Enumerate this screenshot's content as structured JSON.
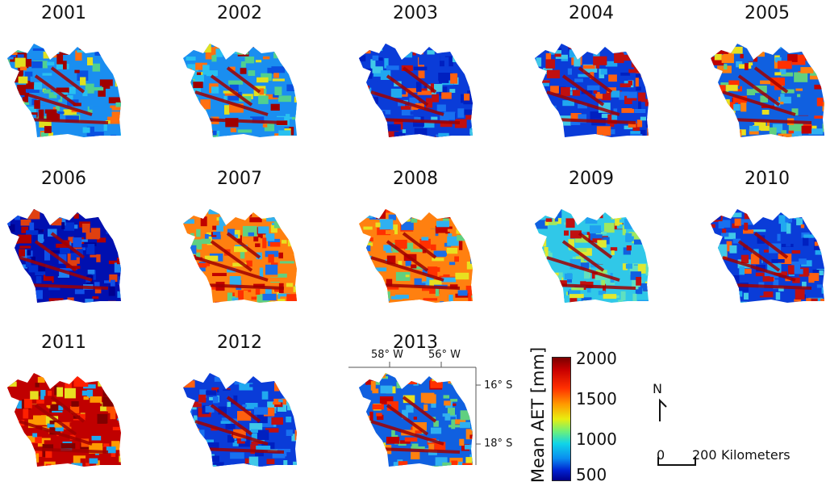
{
  "panels": [
    {
      "year": "2001",
      "palette": "mixed-blue"
    },
    {
      "year": "2002",
      "palette": "mixed-blue"
    },
    {
      "year": "2003",
      "palette": "blue"
    },
    {
      "year": "2004",
      "palette": "blue"
    },
    {
      "year": "2005",
      "palette": "mixed-warm"
    },
    {
      "year": "2006",
      "palette": "dark-blue"
    },
    {
      "year": "2007",
      "palette": "warm"
    },
    {
      "year": "2008",
      "palette": "warm"
    },
    {
      "year": "2009",
      "palette": "cyan"
    },
    {
      "year": "2010",
      "palette": "blue"
    },
    {
      "year": "2011",
      "palette": "hot"
    },
    {
      "year": "2012",
      "palette": "blue"
    },
    {
      "year": "2013",
      "palette": "mixed-warm"
    }
  ],
  "colorbar": {
    "title": "Mean AET [mm]",
    "ticks": [
      "2000",
      "1500",
      "1000",
      "500"
    ],
    "min": 500,
    "max": 2000
  },
  "axes": {
    "lon_ticks": [
      "58° W",
      "56° W"
    ],
    "lat_ticks": [
      "16° S",
      "18° S"
    ]
  },
  "north_label": "N",
  "scale_bar": {
    "start": "0",
    "end": "200",
    "unit": "Kilometers"
  },
  "colors": {
    "low": "#00008a",
    "mid": "#e8ee10",
    "high": "#7a0000"
  }
}
